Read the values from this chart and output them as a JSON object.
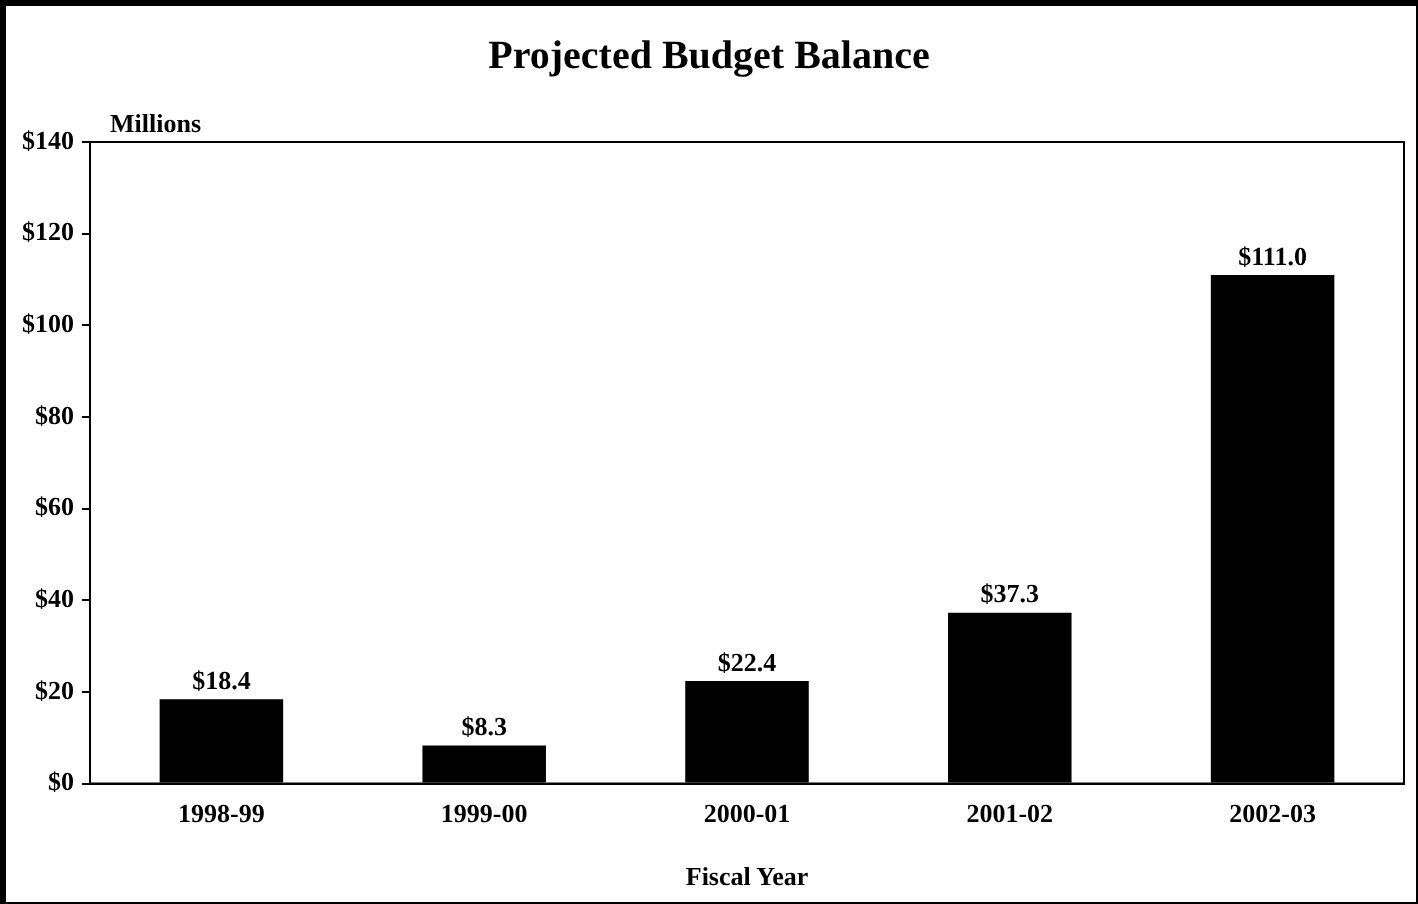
{
  "chart_data": {
    "type": "bar",
    "title": "Projected Budget Balance",
    "ylabel": "Millions",
    "xlabel": "Fiscal Year",
    "categories": [
      "1998-99",
      "1999-00",
      "2000-01",
      "2001-02",
      "2002-03"
    ],
    "values": [
      18.4,
      8.3,
      22.4,
      37.3,
      111.0
    ],
    "value_labels": [
      "$18.4",
      "$8.3",
      "$22.4",
      "$37.3",
      "$111.0"
    ],
    "color": "#000000",
    "ylim": [
      0,
      140
    ],
    "yticks": [
      {
        "value": 0,
        "label": "$0"
      },
      {
        "value": 20,
        "label": "$20"
      },
      {
        "value": 40,
        "label": "$40"
      },
      {
        "value": 60,
        "label": "$60"
      },
      {
        "value": 80,
        "label": "$80"
      },
      {
        "value": 100,
        "label": "$100"
      },
      {
        "value": 120,
        "label": "$120"
      },
      {
        "value": 140,
        "label": "$140"
      }
    ],
    "grid": false,
    "legend": false
  }
}
